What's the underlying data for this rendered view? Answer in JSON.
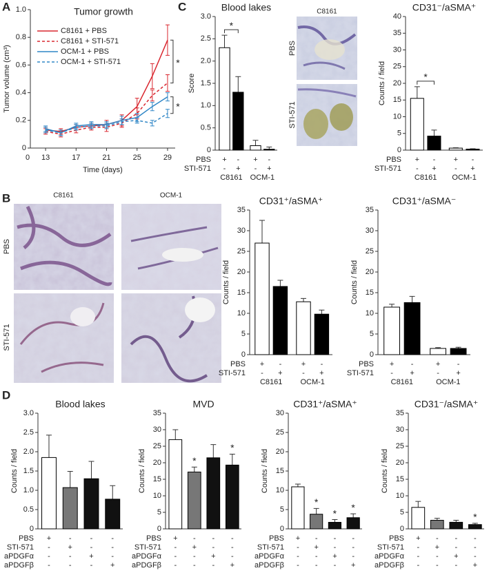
{
  "panel_labels": [
    "A",
    "B",
    "C",
    "D"
  ],
  "micrographs": {
    "C": {
      "col_labels": [
        "C8161"
      ],
      "row_labels": [
        "PBS",
        "STI-571"
      ]
    },
    "B": {
      "col_labels": [
        "C8161",
        "OCM-1"
      ],
      "row_labels": [
        "PBS",
        "STI-571"
      ]
    }
  },
  "chart_data": [
    {
      "type": "line",
      "title": "Tumor growth",
      "xlabel": "Time (days)",
      "ylabel": "Tumor volume (cm³)",
      "x": [
        13,
        15,
        17,
        19,
        21,
        23,
        25,
        27,
        29
      ],
      "x_origin": 0,
      "xlim": [
        11,
        30
      ],
      "xticks": [
        13,
        17,
        21,
        25,
        29
      ],
      "ylim": [
        0,
        1
      ],
      "yticks": [
        0,
        0.2,
        0.4,
        0.6,
        0.8,
        {
          "value": 1,
          "label": "1.0"
        }
      ],
      "bracket_labels": [
        "*",
        "*"
      ],
      "series": [
        {
          "name": "C8161 + PBS",
          "color": "#d9262e",
          "dashed": false,
          "values": [
            0.13,
            0.12,
            0.15,
            0.16,
            0.17,
            0.2,
            0.3,
            0.52,
            0.78
          ],
          "errors": [
            0.02,
            0.02,
            0.02,
            0.02,
            0.03,
            0.04,
            0.06,
            0.09,
            0.11
          ]
        },
        {
          "name": "C8161 + STI-571",
          "color": "#d9262e",
          "dashed": true,
          "values": [
            0.12,
            0.1,
            0.13,
            0.15,
            0.15,
            0.18,
            0.25,
            0.38,
            0.47
          ],
          "errors": [
            0.02,
            0.02,
            0.02,
            0.02,
            0.03,
            0.03,
            0.04,
            0.04,
            0.06
          ]
        },
        {
          "name": "OCM-1 + PBS",
          "color": "#2f86c6",
          "dashed": false,
          "values": [
            0.14,
            0.11,
            0.16,
            0.17,
            0.17,
            0.2,
            0.22,
            0.3,
            0.37
          ],
          "errors": [
            0.02,
            0.02,
            0.02,
            0.02,
            0.02,
            0.03,
            0.03,
            0.03,
            0.03
          ]
        },
        {
          "name": "OCM-1 + STI-571",
          "color": "#2f86c6",
          "dashed": true,
          "values": [
            0.13,
            0.11,
            0.15,
            0.16,
            0.16,
            0.19,
            0.2,
            0.18,
            0.25
          ],
          "errors": [
            0.02,
            0.02,
            0.02,
            0.02,
            0.02,
            0.02,
            0.02,
            0.02,
            0.03
          ]
        }
      ]
    },
    {
      "type": "bar",
      "title": "Blood lakes",
      "ylabel": "Score",
      "values": [
        2.3,
        1.3,
        0.1,
        0.02
      ],
      "errors": [
        0.28,
        0.35,
        0.12,
        0.05
      ],
      "colors": [
        "#ffffff",
        "#000000",
        "#ffffff",
        "#000000"
      ],
      "ylim": [
        0,
        3
      ],
      "yticks": [
        0,
        0.5,
        {
          "value": 1,
          "label": "1.0"
        },
        1.5,
        {
          "value": 2,
          "label": "2.0"
        },
        2.5,
        {
          "value": 3,
          "label": "3.0"
        }
      ],
      "conditions": [
        {
          "name": "PBS",
          "signs": [
            "+",
            "-",
            "+",
            "-"
          ]
        },
        {
          "name": "STI-571",
          "signs": [
            "-",
            "+",
            "-",
            "+"
          ]
        }
      ],
      "groups": [
        "C8161",
        "OCM-1"
      ],
      "bracket_label": "*"
    },
    {
      "type": "bar",
      "title": "CD31⁻/aSMA⁺",
      "ylabel": "Counts / field",
      "values": [
        15.5,
        4.2,
        0.6,
        0.3
      ],
      "errors": [
        3.5,
        1.8,
        0.1,
        0.1
      ],
      "colors": [
        "#ffffff",
        "#000000",
        "#ffffff",
        "#000000"
      ],
      "ylim": [
        0,
        40
      ],
      "yticks": [
        0,
        5,
        10,
        15,
        20,
        25,
        30,
        35,
        40
      ],
      "conditions": [
        {
          "name": "PBS",
          "signs": [
            "+",
            "-",
            "+",
            "-"
          ]
        },
        {
          "name": "STI-571",
          "signs": [
            "-",
            "+",
            "-",
            "+"
          ]
        }
      ],
      "groups": [
        "C8161",
        "OCM-1"
      ],
      "bracket_label": "*"
    },
    {
      "type": "bar",
      "title": "CD31⁺/aSMA⁺",
      "ylabel": "Counts / field",
      "values": [
        27,
        16.5,
        12.8,
        9.8
      ],
      "errors": [
        5.5,
        1.5,
        0.8,
        1
      ],
      "colors": [
        "#ffffff",
        "#000000",
        "#ffffff",
        "#000000"
      ],
      "ylim": [
        0,
        35
      ],
      "yticks": [
        0,
        5,
        10,
        15,
        20,
        25,
        30,
        35
      ],
      "conditions": [
        {
          "name": "PBS",
          "signs": [
            "+",
            "-",
            "+",
            "-"
          ]
        },
        {
          "name": "STI-571",
          "signs": [
            "-",
            "+",
            "-",
            "+"
          ]
        }
      ],
      "groups": [
        "C8161",
        "OCM-1"
      ]
    },
    {
      "type": "bar",
      "title": "CD31⁺/aSMA⁻",
      "ylabel": "Counts / field",
      "values": [
        11.5,
        12.6,
        1.5,
        1.5
      ],
      "errors": [
        0.7,
        1.5,
        0.2,
        0.3
      ],
      "colors": [
        "#ffffff",
        "#000000",
        "#ffffff",
        "#000000"
      ],
      "ylim": [
        0,
        35
      ],
      "yticks": [
        0,
        5,
        10,
        15,
        20,
        25,
        30,
        35
      ],
      "conditions": [
        {
          "name": "PBS",
          "signs": [
            "+",
            "-",
            "+",
            "-"
          ]
        },
        {
          "name": "STI-571",
          "signs": [
            "-",
            "+",
            "-",
            "+"
          ]
        }
      ],
      "groups": [
        "C8161",
        "OCM-1"
      ]
    },
    {
      "type": "bar",
      "title": "Blood lakes",
      "ylabel": "Counts / field",
      "values": [
        1.85,
        1.07,
        1.3,
        0.77
      ],
      "errors": [
        0.58,
        0.42,
        0.45,
        0.35
      ],
      "colors": [
        "#ffffff",
        "#777777",
        "#111111",
        "#111111"
      ],
      "ylim": [
        0,
        3
      ],
      "yticks": [
        0,
        0.5,
        {
          "value": 1,
          "label": "1.0"
        },
        1.5,
        {
          "value": 2,
          "label": "2.0"
        },
        2.5,
        {
          "value": 3,
          "label": "3.0"
        }
      ],
      "conditions": [
        {
          "name": "PBS",
          "signs": [
            "+",
            "-",
            "-",
            "-"
          ]
        },
        {
          "name": "STI-571",
          "signs": [
            "-",
            "+",
            "-",
            "-"
          ]
        },
        {
          "name": "aPDGFα",
          "signs": [
            "-",
            "-",
            "+",
            "-"
          ]
        },
        {
          "name": "aPDGFβ",
          "signs": [
            "-",
            "-",
            "-",
            "+"
          ]
        }
      ]
    },
    {
      "type": "bar",
      "title": "MVD",
      "ylabel": "Counts / field",
      "values": [
        27,
        17.2,
        21.5,
        19.3
      ],
      "errors": [
        3,
        1.5,
        4,
        3.3
      ],
      "colors": [
        "#ffffff",
        "#777777",
        "#111111",
        "#111111"
      ],
      "ylim": [
        0,
        35
      ],
      "yticks": [
        0,
        5,
        10,
        15,
        20,
        25,
        30,
        35
      ],
      "significant": [
        false,
        true,
        false,
        true
      ],
      "significance_label": "*",
      "conditions": [
        {
          "name": "PBS",
          "signs": [
            "+",
            "-",
            "-",
            "-"
          ]
        },
        {
          "name": "STI-571",
          "signs": [
            "-",
            "+",
            "-",
            "-"
          ]
        },
        {
          "name": "aPDGFα",
          "signs": [
            "-",
            "-",
            "+",
            "-"
          ]
        },
        {
          "name": "aPDGFβ",
          "signs": [
            "-",
            "-",
            "-",
            "+"
          ]
        }
      ]
    },
    {
      "type": "bar",
      "title": "CD31⁺/aSMA⁺",
      "ylabel": "Counts / field",
      "values": [
        10.9,
        3.8,
        1.7,
        2.9
      ],
      "errors": [
        0.7,
        1.5,
        0.7,
        1
      ],
      "colors": [
        "#ffffff",
        "#777777",
        "#111111",
        "#111111"
      ],
      "ylim": [
        0,
        30
      ],
      "yticks": [
        0,
        5,
        10,
        15,
        20,
        25,
        30
      ],
      "significant": [
        false,
        true,
        true,
        true
      ],
      "significance_label": "*",
      "conditions": [
        {
          "name": "PBS",
          "signs": [
            "+",
            "-",
            "-",
            "-"
          ]
        },
        {
          "name": "STI-571",
          "signs": [
            "-",
            "+",
            "-",
            "-"
          ]
        },
        {
          "name": "aPDGFα",
          "signs": [
            "-",
            "-",
            "+",
            "-"
          ]
        },
        {
          "name": "aPDGFβ",
          "signs": [
            "-",
            "-",
            "-",
            "+"
          ]
        }
      ]
    },
    {
      "type": "bar",
      "title": "CD31⁻/aSMA⁺",
      "ylabel": "Counts / field",
      "values": [
        6.5,
        2.6,
        2,
        1.3
      ],
      "errors": [
        1.8,
        0.6,
        0.6,
        0.4
      ],
      "colors": [
        "#ffffff",
        "#777777",
        "#111111",
        "#111111"
      ],
      "ylim": [
        0,
        35
      ],
      "yticks": [
        0,
        5,
        10,
        15,
        20,
        25,
        30,
        35
      ],
      "significant": [
        false,
        false,
        false,
        true
      ],
      "significance_label": "*",
      "conditions": [
        {
          "name": "PBS",
          "signs": [
            "+",
            "-",
            "-",
            "-"
          ]
        },
        {
          "name": "STI-571",
          "signs": [
            "-",
            "+",
            "-",
            "-"
          ]
        },
        {
          "name": "aPDGFα",
          "signs": [
            "-",
            "-",
            "+",
            "-"
          ]
        },
        {
          "name": "aPDGFβ",
          "signs": [
            "-",
            "-",
            "-",
            "+"
          ]
        }
      ]
    }
  ]
}
